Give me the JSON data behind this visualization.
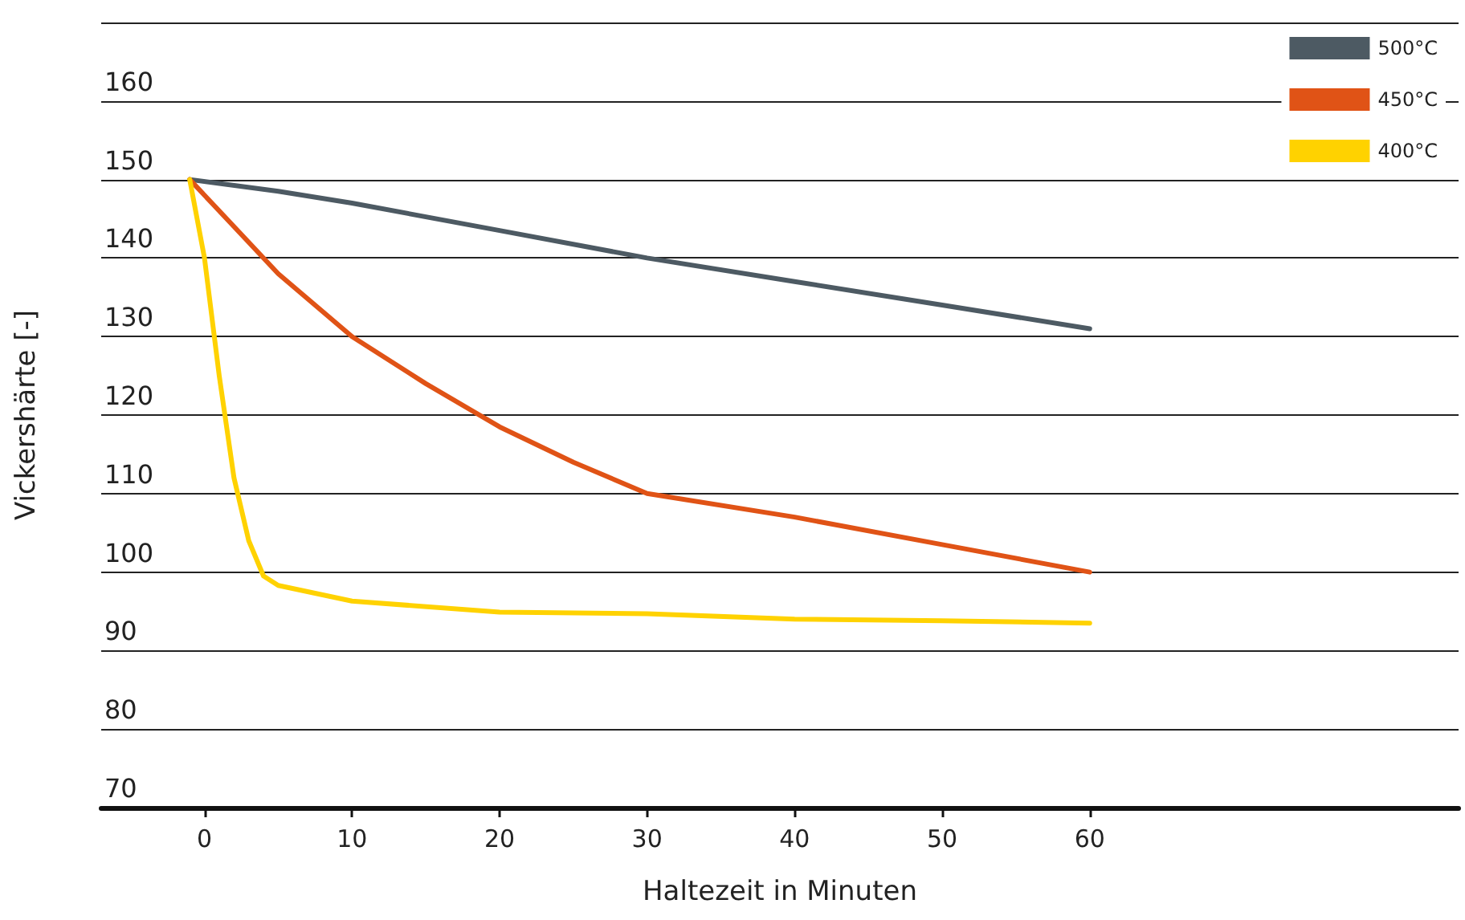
{
  "chart_data": {
    "type": "line",
    "xlabel": "Haltezeit in Minuten",
    "ylabel": "Vickershärte [-]",
    "xlim": [
      -7,
      85
    ],
    "xticks": [
      0,
      10,
      20,
      30,
      40,
      50,
      60
    ],
    "ylim": [
      70,
      170
    ],
    "yticks": [
      70,
      80,
      90,
      100,
      110,
      120,
      130,
      140,
      150,
      160,
      {
        "value": 170,
        "label": null
      }
    ],
    "grid": "y",
    "legend": "top right",
    "marker": "none",
    "line_style": "solid",
    "series": [
      {
        "name": "500°C",
        "color": "#4d5a63",
        "x": [
          -1,
          5,
          10,
          20,
          30,
          40,
          50,
          60
        ],
        "values": [
          150,
          148.5,
          147,
          143.5,
          140,
          137,
          134,
          131
        ]
      },
      {
        "name": "450°C",
        "color": "#e05316",
        "x": [
          -1,
          2,
          5,
          10,
          15,
          20,
          25,
          30,
          40,
          50,
          60
        ],
        "values": [
          150,
          144,
          138,
          130,
          124,
          118.5,
          114,
          110,
          107,
          103.5,
          100
        ]
      },
      {
        "name": "400°C",
        "color": "#ffd200",
        "x": [
          -1,
          0,
          1,
          2,
          3,
          4,
          5,
          10,
          20,
          30,
          40,
          50,
          60
        ],
        "values": [
          150,
          140,
          125,
          112,
          104,
          99.5,
          98.3,
          96.3,
          94.9,
          94.7,
          94,
          93.8,
          93.5
        ]
      }
    ]
  }
}
